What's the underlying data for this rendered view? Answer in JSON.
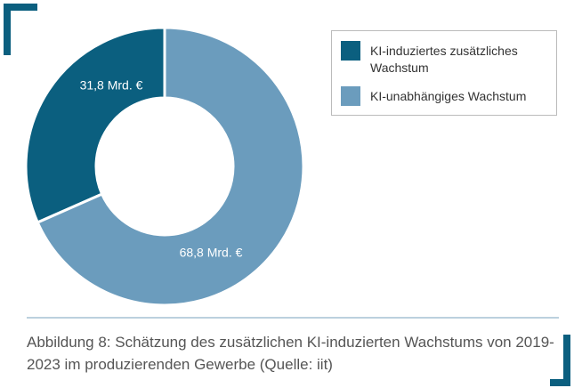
{
  "chart_data": {
    "type": "donut",
    "caption": "Abbildung 8: Schätzung des zusätzlichen KI-induzierten Wachstums von 2019-2023 im produzierenden Gewerbe (Quelle: iit)",
    "categories": [
      "KI-induziertes zusätzliches Wachstum",
      "KI-unabhängiges Wachstum"
    ],
    "values": [
      31.8,
      68.8
    ],
    "value_labels": [
      "31,8 Mrd. €",
      "68,8 Mrd. €"
    ],
    "colors": [
      "#0b5f7f",
      "#6b9cbd"
    ],
    "legend": "top-right"
  }
}
